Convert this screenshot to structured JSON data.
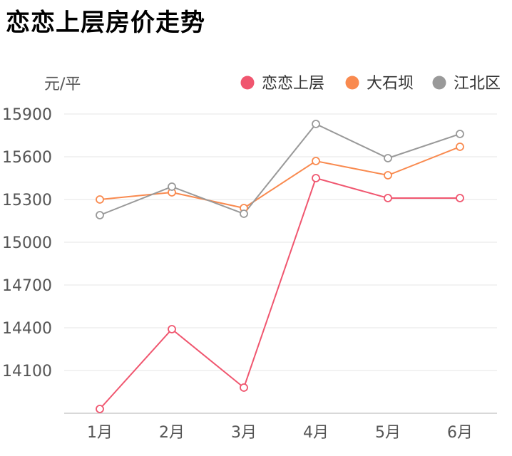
{
  "page": {
    "title": "恋恋上层房价走势"
  },
  "chart_data": {
    "type": "line",
    "title": "恋恋上层房价走势",
    "xlabel": "",
    "ylabel": "元/平",
    "categories": [
      "1月",
      "2月",
      "3月",
      "4月",
      "5月",
      "6月"
    ],
    "yticks": [
      14100,
      14400,
      14700,
      15000,
      15300,
      15600,
      15900
    ],
    "ylim": [
      13800,
      15900
    ],
    "grid": true,
    "legend_position": "top-right",
    "series": [
      {
        "name": "恋恋上层",
        "color": "#f0566f",
        "values": [
          13830,
          14390,
          13980,
          15450,
          15310,
          15310
        ]
      },
      {
        "name": "大石坝",
        "color": "#f98a4f",
        "values": [
          15300,
          15350,
          15240,
          15570,
          15470,
          15670
        ]
      },
      {
        "name": "江北区",
        "color": "#999999",
        "values": [
          15190,
          15390,
          15200,
          15830,
          15590,
          15760
        ]
      }
    ]
  }
}
